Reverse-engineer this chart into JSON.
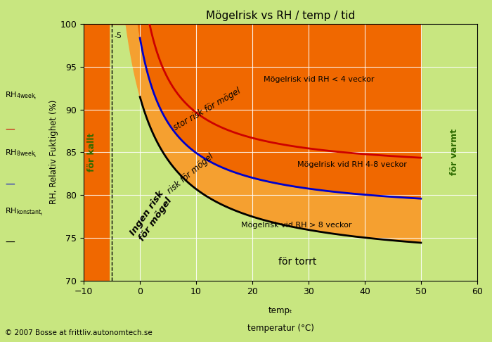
{
  "title": "Mögelrisk vs RH / temp / tid",
  "xlabel_line1": "tempₜ",
  "xlabel_line2": "temperatur (°C)",
  "ylabel": "RH, Relativ Fuktighet (%)",
  "xlim": [
    -10,
    60
  ],
  "ylim": [
    70,
    100
  ],
  "xticks": [
    -10,
    0,
    10,
    20,
    30,
    40,
    50,
    60
  ],
  "yticks": [
    70,
    75,
    80,
    85,
    90,
    95,
    100
  ],
  "bg_color_outer": "#c8e680",
  "bg_color_green": "#c8e680",
  "bg_color_yellow": "#f5a030",
  "bg_color_orange": "#f06800",
  "dashed_x": -5,
  "dashed_label": "-5",
  "copyright": "© 2007 Bosse at frittliv.autonomtech.se",
  "color_4week": "#cc0000",
  "color_8week": "#0000cc",
  "color_constant": "#000000",
  "text_ingen_risk": "Ingen risk\nför mögel",
  "text_risk": "risk för mögel",
  "text_stor_risk": "stor risk för mögel",
  "text_for_kallt": "för kallt",
  "text_for_varmt": "för varmt",
  "text_for_torrt": "för torrt",
  "text_label_4week": "Mögelrisk vid RH < 4 veckor",
  "text_label_8week": "Mögelrisk vid RH 4-8 veckor",
  "text_label_constant": "Mögelrisk vid RH > 8 veckor",
  "legend_label_4week": "RH",
  "legend_sub_4week": "4week",
  "legend_label_8week": "RH",
  "legend_sub_8week": "8week",
  "legend_label_const": "RH",
  "legend_sub_const": "konstant"
}
